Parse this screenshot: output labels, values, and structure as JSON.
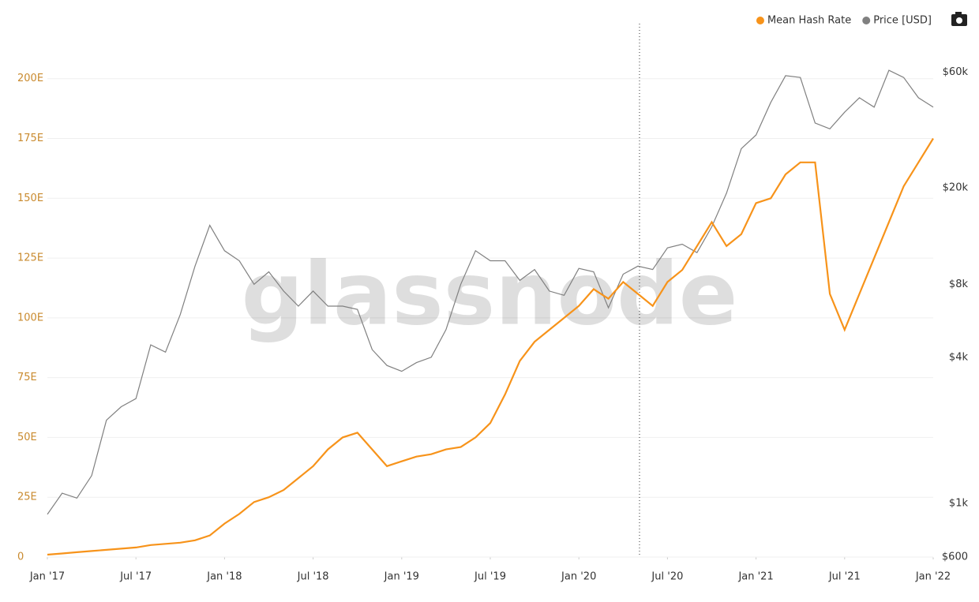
{
  "chart_data": {
    "type": "line",
    "watermark": "glassnode",
    "x": [
      "2017-01",
      "2017-02",
      "2017-03",
      "2017-04",
      "2017-05",
      "2017-06",
      "2017-07",
      "2017-08",
      "2017-09",
      "2017-10",
      "2017-11",
      "2017-12",
      "2018-01",
      "2018-02",
      "2018-03",
      "2018-04",
      "2018-05",
      "2018-06",
      "2018-07",
      "2018-08",
      "2018-09",
      "2018-10",
      "2018-11",
      "2018-12",
      "2019-01",
      "2019-02",
      "2019-03",
      "2019-04",
      "2019-05",
      "2019-06",
      "2019-07",
      "2019-08",
      "2019-09",
      "2019-10",
      "2019-11",
      "2019-12",
      "2020-01",
      "2020-02",
      "2020-03",
      "2020-04",
      "2020-05",
      "2020-06",
      "2020-07",
      "2020-08",
      "2020-09",
      "2020-10",
      "2020-11",
      "2020-12",
      "2021-01",
      "2021-02",
      "2021-03",
      "2021-04",
      "2021-05",
      "2021-06",
      "2021-07",
      "2021-08",
      "2021-09",
      "2021-10",
      "2021-11",
      "2021-12",
      "2022-01"
    ],
    "series": [
      {
        "name": "Mean Hash Rate",
        "color": "#f7931a",
        "axis": "y",
        "values": [
          1,
          1.5,
          2,
          2.5,
          3,
          3.5,
          4,
          5,
          5.5,
          6,
          7,
          9,
          14,
          18,
          23,
          25,
          28,
          33,
          38,
          45,
          50,
          52,
          45,
          38,
          40,
          42,
          43,
          45,
          46,
          50,
          56,
          68,
          82,
          90,
          95,
          100,
          105,
          112,
          108,
          115,
          110,
          105,
          115,
          120,
          130,
          140,
          130,
          135,
          148,
          150,
          160,
          165,
          165,
          110,
          95,
          110,
          125,
          140,
          155,
          165,
          175
        ]
      },
      {
        "name": "Price [USD]",
        "color": "#808080",
        "axis": "y2",
        "values": [
          900,
          1100,
          1050,
          1300,
          2200,
          2500,
          2700,
          4500,
          4200,
          6000,
          9500,
          14000,
          11000,
          10000,
          8000,
          9000,
          7500,
          6500,
          7500,
          6500,
          6500,
          6300,
          4300,
          3700,
          3500,
          3800,
          4000,
          5200,
          8000,
          11000,
          10000,
          10000,
          8300,
          9200,
          7500,
          7200,
          9300,
          9000,
          6400,
          8800,
          9500,
          9200,
          11300,
          11700,
          10800,
          13800,
          19000,
          29000,
          33000,
          45000,
          58000,
          57000,
          37000,
          35000,
          41000,
          47000,
          43000,
          61000,
          57000,
          47000,
          43000
        ]
      }
    ],
    "ylim": [
      0,
      223
    ],
    "yticks": [
      0,
      {
        "value": 25,
        "label": "25E"
      },
      {
        "value": 50,
        "label": "50E"
      },
      {
        "value": 75,
        "label": "75E"
      },
      {
        "value": 100,
        "label": "100E"
      },
      {
        "value": 125,
        "label": "125E"
      },
      {
        "value": 150,
        "label": "150E"
      },
      {
        "value": 175,
        "label": "175E"
      },
      {
        "value": 200,
        "label": "200E"
      }
    ],
    "y2lim": [
      600,
      95000
    ],
    "y2scale": "log",
    "y2ticks": [
      {
        "value": 600,
        "label": "$600"
      },
      {
        "value": 1000,
        "label": "$1k"
      },
      {
        "value": 4000,
        "label": "$4k"
      },
      {
        "value": 8000,
        "label": "$8k"
      },
      {
        "value": 20000,
        "label": "$20k"
      },
      {
        "value": 60000,
        "label": "$60k"
      }
    ],
    "xticks": [
      {
        "value": "2017-01",
        "label": "Jan '17"
      },
      {
        "value": "2017-07",
        "label": "Jul '17"
      },
      {
        "value": "2018-01",
        "label": "Jan '18"
      },
      {
        "value": "2018-07",
        "label": "Jul '18"
      },
      {
        "value": "2019-01",
        "label": "Jan '19"
      },
      {
        "value": "2019-07",
        "label": "Jul '19"
      },
      {
        "value": "2020-01",
        "label": "Jan '20"
      },
      {
        "value": "2020-07",
        "label": "Jul '20"
      },
      {
        "value": "2021-01",
        "label": "Jan '21"
      },
      {
        "value": "2021-07",
        "label": "Jul '21"
      },
      {
        "value": "2022-01",
        "label": "Jan '22"
      }
    ],
    "grid": true,
    "legend": "top-right"
  }
}
